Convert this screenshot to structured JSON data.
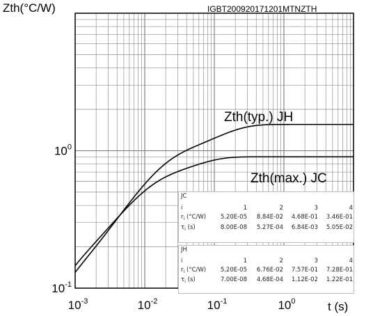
{
  "code": "IGBT200920171201MTNZTH",
  "chart_data": {
    "type": "line",
    "xscale": "log",
    "yscale": "log",
    "xlim": [
      0.001,
      10
    ],
    "ylim": [
      0.1,
      10
    ],
    "ylabel": "Zth(°C/W)",
    "xlabel": "t (s)",
    "grid": true,
    "x_ticks": [
      {
        "base": "10",
        "exp": "-3"
      },
      {
        "base": "10",
        "exp": "-2"
      },
      {
        "base": "10",
        "exp": "-1"
      },
      {
        "base": "10",
        "exp": "0"
      }
    ],
    "y_ticks": [
      {
        "base": "10",
        "exp": "-1"
      },
      {
        "base": "10",
        "exp": "0"
      }
    ],
    "series": [
      {
        "name": "Zth(typ.) JH",
        "r": [
          5.2e-05,
          0.0676,
          0.757,
          0.728
        ],
        "tau": [
          7e-08,
          0.000468,
          0.0112,
          0.122
        ]
      },
      {
        "name": "Zth(max.) JC",
        "r": [
          5.2e-05,
          0.0884,
          0.468,
          0.346
        ],
        "tau": [
          8e-08,
          0.000527,
          0.00684,
          0.0505
        ]
      }
    ],
    "annotations": [
      "Zth(typ.) JH",
      "Zth(max.) JC"
    ],
    "tables": [
      {
        "title": "JC",
        "row_i": "i",
        "row_r": "r",
        "row_r_unit": " (°C/W)",
        "row_tau": "τ",
        "row_tau_unit": " (s)",
        "sub": "i",
        "i": [
          "1",
          "2",
          "3",
          "4"
        ],
        "r": [
          "5.20E-05",
          "8.84E-02",
          "4.68E-01",
          "3.46E-01"
        ],
        "tau": [
          "8.00E-08",
          "5.27E-04",
          "6.84E-03",
          "5.05E-02"
        ]
      },
      {
        "title": "JH",
        "row_i": "i",
        "row_r": "r",
        "row_r_unit": " (°C/W)",
        "row_tau": "τ",
        "row_tau_unit": " (s)",
        "sub": "i",
        "i": [
          "1",
          "2",
          "3",
          "4"
        ],
        "r": [
          "5.20E-05",
          "6.76E-02",
          "7.57E-01",
          "7.28E-01"
        ],
        "tau": [
          "7.00E-08",
          "4.68E-04",
          "1.12E-02",
          "1.22E-01"
        ]
      }
    ]
  }
}
